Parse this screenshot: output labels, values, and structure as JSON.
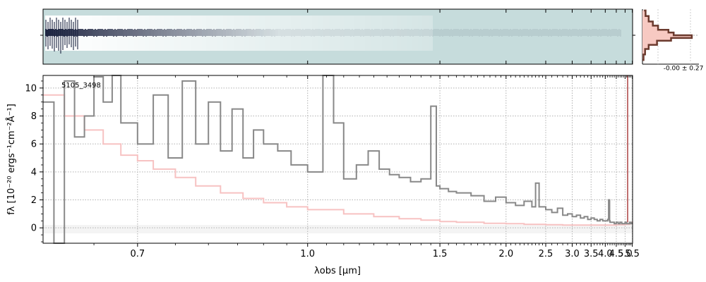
{
  "chart_data": [
    {
      "type": "heatmap",
      "panel": "2d-spectrum",
      "title": "",
      "description_colormap": "grey-blue diverging, light teal background",
      "colors": {
        "background": "#c6dcdc",
        "dark": "#1c2340",
        "light": "#ffffff"
      }
    },
    {
      "type": "line",
      "panel": "cross-dispersion-profile",
      "label": "-0.00 ± 0.27",
      "colors": {
        "profile": "#6b3a2e",
        "fill": "#f7c9c2"
      },
      "profile": [
        {
          "y": -0.9,
          "v": 0.02
        },
        {
          "y": -0.7,
          "v": 0.05
        },
        {
          "y": -0.5,
          "v": 0.12
        },
        {
          "y": -0.35,
          "v": 0.28
        },
        {
          "y": -0.2,
          "v": 0.55
        },
        {
          "y": -0.1,
          "v": 0.95
        },
        {
          "y": 0.0,
          "v": 0.6
        },
        {
          "y": 0.1,
          "v": 0.5
        },
        {
          "y": 0.2,
          "v": 0.3
        },
        {
          "y": 0.35,
          "v": 0.2
        },
        {
          "y": 0.5,
          "v": 0.12
        },
        {
          "y": 0.7,
          "v": 0.06
        },
        {
          "y": 0.9,
          "v": 0.03
        }
      ]
    },
    {
      "type": "line",
      "panel": "1d-spectrum",
      "source_label": "5105_3498",
      "xlabel": "λobs [μm]",
      "ylabel": "fλ [10⁻²⁰ ergs⁻¹cm⁻²Å⁻¹]",
      "xscale": "reciprocal",
      "xlim": [
        0.6,
        5.52
      ],
      "ylim": [
        -1.1,
        10.9
      ],
      "xticks": [
        0.7,
        1.0,
        1.5,
        2.0,
        2.5,
        3.0,
        3.5,
        4.0,
        4.5,
        5.0,
        5.5
      ],
      "xtick_labels": [
        "0.7",
        "1.0",
        "1.5",
        "2.0",
        "2.5",
        "3.0",
        "3.5",
        "4.0",
        "4.5",
        "5.0",
        "5.5"
      ],
      "yticks": [
        0,
        2,
        4,
        6,
        8,
        10
      ],
      "grid": true,
      "colors": {
        "flux": "#888888",
        "error": "#f7c2c2",
        "edge": "#c07070"
      },
      "series": [
        {
          "role": "flux",
          "x": [
            0.6,
            0.61,
            0.62,
            0.63,
            0.64,
            0.65,
            0.66,
            0.67,
            0.68,
            0.7,
            0.72,
            0.74,
            0.76,
            0.78,
            0.8,
            0.82,
            0.84,
            0.86,
            0.88,
            0.9,
            0.93,
            0.96,
            1.0,
            1.04,
            1.07,
            1.1,
            1.14,
            1.18,
            1.22,
            1.26,
            1.3,
            1.35,
            1.4,
            1.45,
            1.48,
            1.5,
            1.55,
            1.6,
            1.7,
            1.8,
            1.9,
            2.0,
            2.1,
            2.2,
            2.3,
            2.35,
            2.4,
            2.5,
            2.6,
            2.7,
            2.8,
            2.9,
            3.0,
            3.1,
            3.2,
            3.3,
            3.4,
            3.5,
            3.6,
            3.7,
            3.8,
            3.9,
            4.0,
            4.1,
            4.14,
            4.18,
            4.2,
            4.3,
            4.4,
            4.5,
            4.6,
            4.7,
            4.8,
            4.9,
            5.0,
            5.1,
            5.2,
            5.3,
            5.4,
            5.48
          ],
          "y": [
            9.0,
            -1.1,
            10.5,
            6.5,
            8.0,
            10.8,
            9.0,
            10.9,
            7.5,
            6.0,
            9.5,
            5.0,
            10.5,
            6.0,
            9.0,
            5.5,
            8.5,
            5.0,
            7.0,
            6.0,
            5.5,
            4.5,
            4.0,
            10.9,
            7.5,
            3.5,
            4.5,
            5.5,
            4.2,
            3.8,
            3.6,
            3.3,
            3.5,
            8.7,
            3.0,
            2.8,
            2.6,
            2.5,
            2.3,
            1.9,
            2.2,
            1.8,
            1.6,
            1.9,
            1.5,
            3.2,
            1.5,
            1.3,
            1.1,
            1.4,
            0.9,
            1.0,
            0.8,
            0.9,
            0.7,
            0.8,
            0.6,
            0.7,
            0.6,
            0.5,
            0.6,
            0.5,
            0.5,
            0.6,
            2.0,
            0.5,
            0.4,
            0.4,
            0.3,
            0.4,
            0.3,
            0.4,
            0.3,
            0.3,
            0.4,
            0.3,
            0.3,
            0.4,
            0.3,
            0.4
          ]
        },
        {
          "role": "error",
          "x": [
            0.6,
            0.62,
            0.64,
            0.66,
            0.68,
            0.7,
            0.72,
            0.75,
            0.78,
            0.82,
            0.86,
            0.9,
            0.95,
            1.0,
            1.1,
            1.2,
            1.3,
            1.4,
            1.5,
            1.6,
            1.8,
            2.0,
            2.2,
            2.5,
            2.8,
            3.0,
            3.5,
            4.0,
            4.5,
            5.0,
            5.3,
            5.5
          ],
          "y": [
            9.5,
            8.0,
            7.0,
            6.0,
            5.2,
            4.8,
            4.2,
            3.6,
            3.0,
            2.5,
            2.1,
            1.8,
            1.5,
            1.3,
            1.0,
            0.8,
            0.65,
            0.55,
            0.45,
            0.4,
            0.32,
            0.3,
            0.25,
            0.22,
            0.2,
            0.2,
            0.2,
            0.2,
            0.22,
            0.25,
            0.3,
            0.45
          ]
        }
      ]
    }
  ]
}
